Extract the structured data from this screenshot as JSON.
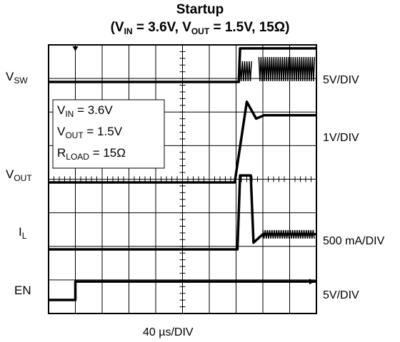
{
  "chart_data": {
    "type": "line",
    "title": "Startup",
    "subtitle": {
      "v_in": "V",
      "v_in_sub": "IN",
      "v_in_val": " = 3.6V, ",
      "v_out": "V",
      "v_out_sub": "OUT",
      "v_out_val": " = 1.5V, 15Ω)"
    },
    "timebase": "40 µs/DIV",
    "annotation": {
      "vin_label": "V",
      "vin_sub": "IN",
      "vin_val": " = 3.6V",
      "vout_label": "V",
      "vout_sub": "OUT",
      "vout_val": " = 1.5V",
      "rload_label": "R",
      "rload_sub": "LOAD",
      "rload_val": " = 15Ω"
    },
    "divisions": {
      "x": 10,
      "y": 8
    },
    "series": [
      {
        "name": "VSW",
        "label": "V",
        "label_sub": "SW",
        "scale": "5V/DIV",
        "x_div": [
          0,
          7.1,
          7.15,
          10
        ],
        "y_div": [
          0,
          0,
          1,
          1
        ]
      },
      {
        "name": "VOUT",
        "label": "V",
        "label_sub": "OUT",
        "scale": "1V/DIV",
        "x_div": [
          0,
          6.95,
          7.4,
          7.75,
          8.05,
          10
        ],
        "y_div": [
          0,
          0,
          2.4,
          1.9,
          2.0,
          2.0
        ]
      },
      {
        "name": "IL",
        "label": "I",
        "label_sub": "L",
        "scale": "500 mA/DIV",
        "x_div": [
          0,
          7.05,
          7.15,
          7.55,
          7.65,
          8.0,
          10
        ],
        "y_div": [
          0,
          0,
          2.2,
          2.2,
          0.2,
          0.45,
          0.45
        ]
      },
      {
        "name": "EN",
        "label": "EN",
        "label_sub": "",
        "scale": "5V/DIV",
        "x_div": [
          0,
          1.0,
          1.0,
          10
        ],
        "y_div": [
          0,
          0,
          0.55,
          0.55
        ]
      }
    ]
  }
}
